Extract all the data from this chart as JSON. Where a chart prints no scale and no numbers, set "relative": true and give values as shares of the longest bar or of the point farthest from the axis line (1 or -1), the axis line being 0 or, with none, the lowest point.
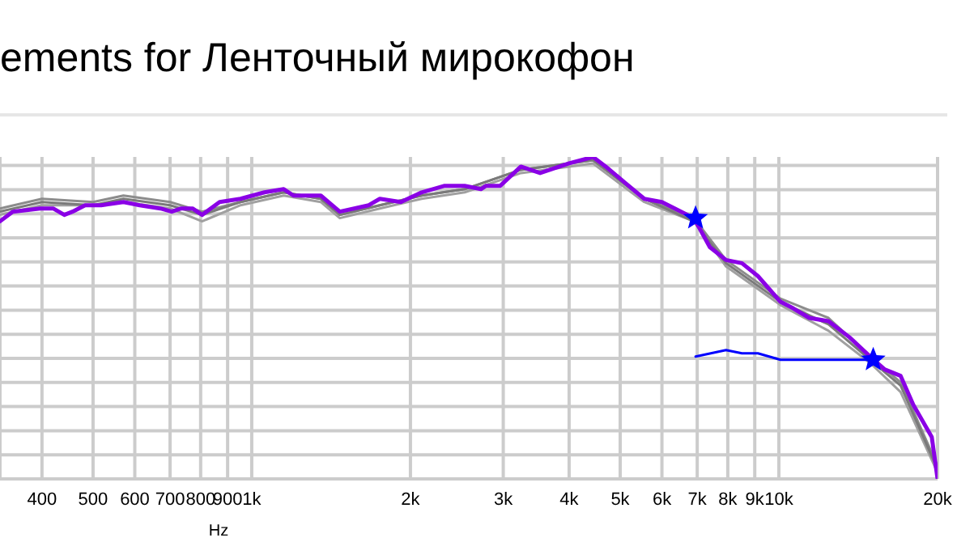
{
  "chart_data": {
    "type": "line",
    "title": "ements for Ленточный мирокофон",
    "xlabel": "Hz",
    "log": "x",
    "relative": true,
    "grid": true,
    "marker": "none",
    "line_style": "solid",
    "xlim": [
      333,
      20000
    ],
    "xticks": [
      400,
      500,
      600,
      700,
      800,
      900,
      {
        "value": 1000,
        "label": "1k"
      },
      {
        "value": 2000,
        "label": "2k"
      },
      {
        "value": 3000,
        "label": "3k"
      },
      {
        "value": 4000,
        "label": "4k"
      },
      {
        "value": 5000,
        "label": "5k"
      },
      {
        "value": 6000,
        "label": "6k"
      },
      {
        "value": 7000,
        "label": "7k"
      },
      {
        "value": 8000,
        "label": "8k"
      },
      {
        "value": 9000,
        "label": "9k"
      },
      {
        "value": 10000,
        "label": "10k"
      },
      {
        "value": 20000,
        "label": "20k"
      }
    ],
    "series": [
      {
        "color": "#8c8c8c",
        "x": [
          333,
          400,
          500,
          571,
          700,
          805,
          952,
          1150,
          1352,
          1469,
          1750,
          2100,
          2535,
          3240,
          4440,
          5555,
          6900,
          7937,
          10070,
          12420,
          14900,
          17020,
          20000
        ],
        "values": [
          0.84,
          0.87,
          0.86,
          0.88,
          0.86,
          0.83,
          0.86,
          0.89,
          0.87,
          0.82,
          0.85,
          0.88,
          0.9,
          0.96,
          0.99,
          0.87,
          0.81,
          0.68,
          0.56,
          0.5,
          0.38,
          0.3,
          0.04
        ]
      },
      {
        "color": "#a0a0a0",
        "x": [
          333,
          400,
          500,
          571,
          700,
          805,
          952,
          1150,
          1352,
          1469,
          1750,
          2100,
          2535,
          3240,
          4440,
          5555,
          6900,
          7937,
          10070,
          12420,
          14900,
          17020,
          20000
        ],
        "values": [
          0.82,
          0.85,
          0.85,
          0.86,
          0.84,
          0.8,
          0.85,
          0.88,
          0.86,
          0.81,
          0.84,
          0.87,
          0.89,
          0.95,
          0.98,
          0.86,
          0.8,
          0.66,
          0.54,
          0.46,
          0.36,
          0.27,
          0.02
        ]
      },
      {
        "color": "#7a7a7a",
        "x": [
          333,
          400,
          500,
          571,
          700,
          805,
          952,
          1150,
          1352,
          1469,
          1750,
          2100,
          2535,
          3240,
          4440,
          5555,
          6900,
          7937,
          10070,
          12420,
          14900,
          17020,
          20000
        ],
        "values": [
          0.83,
          0.86,
          0.85,
          0.87,
          0.85,
          0.82,
          0.86,
          0.89,
          0.87,
          0.82,
          0.85,
          0.88,
          0.9,
          0.96,
          0.99,
          0.87,
          0.8,
          0.67,
          0.55,
          0.48,
          0.37,
          0.29,
          0.03
        ]
      },
      {
        "color": "#8a00e6",
        "x": [
          333,
          352,
          397,
          420,
          441,
          457,
          483,
          518,
          571,
          613,
          671,
          705,
          735,
          772,
          805,
          869,
          952,
          1057,
          1150,
          1200,
          1352,
          1469,
          1667,
          1750,
          1918,
          2100,
          2316,
          2535,
          2721,
          2779,
          2958,
          3240,
          3524,
          4000,
          4440,
          4694,
          5105,
          5555,
          5998,
          6900,
          7396,
          7937,
          8511,
          9124,
          10070,
          10640,
          11420,
          12420,
          13610,
          14900,
          15870,
          17020,
          17990,
          19500,
          20000
        ],
        "values": [
          0.8,
          0.83,
          0.84,
          0.84,
          0.82,
          0.83,
          0.85,
          0.85,
          0.86,
          0.85,
          0.84,
          0.83,
          0.84,
          0.84,
          0.82,
          0.86,
          0.87,
          0.89,
          0.9,
          0.88,
          0.88,
          0.83,
          0.85,
          0.87,
          0.86,
          0.89,
          0.91,
          0.91,
          0.9,
          0.91,
          0.91,
          0.97,
          0.95,
          0.98,
          1.0,
          0.97,
          0.92,
          0.87,
          0.86,
          0.81,
          0.72,
          0.68,
          0.67,
          0.63,
          0.55,
          0.53,
          0.5,
          0.49,
          0.44,
          0.38,
          0.34,
          0.32,
          0.23,
          0.13,
          0
        ]
      },
      {
        "color": "#0000ff",
        "x": [
          6950,
          7937,
          8511,
          9124,
          10070,
          11300,
          12700,
          15100
        ],
        "values": [
          0.38,
          0.4,
          0.39,
          0.39,
          0.37,
          0.37,
          0.37,
          0.37
        ]
      },
      {
        "type": "scatter",
        "marker": "star",
        "color": "#0000ff",
        "x": [
          6950,
          15100
        ],
        "values": [
          0.81,
          0.37
        ]
      }
    ]
  }
}
